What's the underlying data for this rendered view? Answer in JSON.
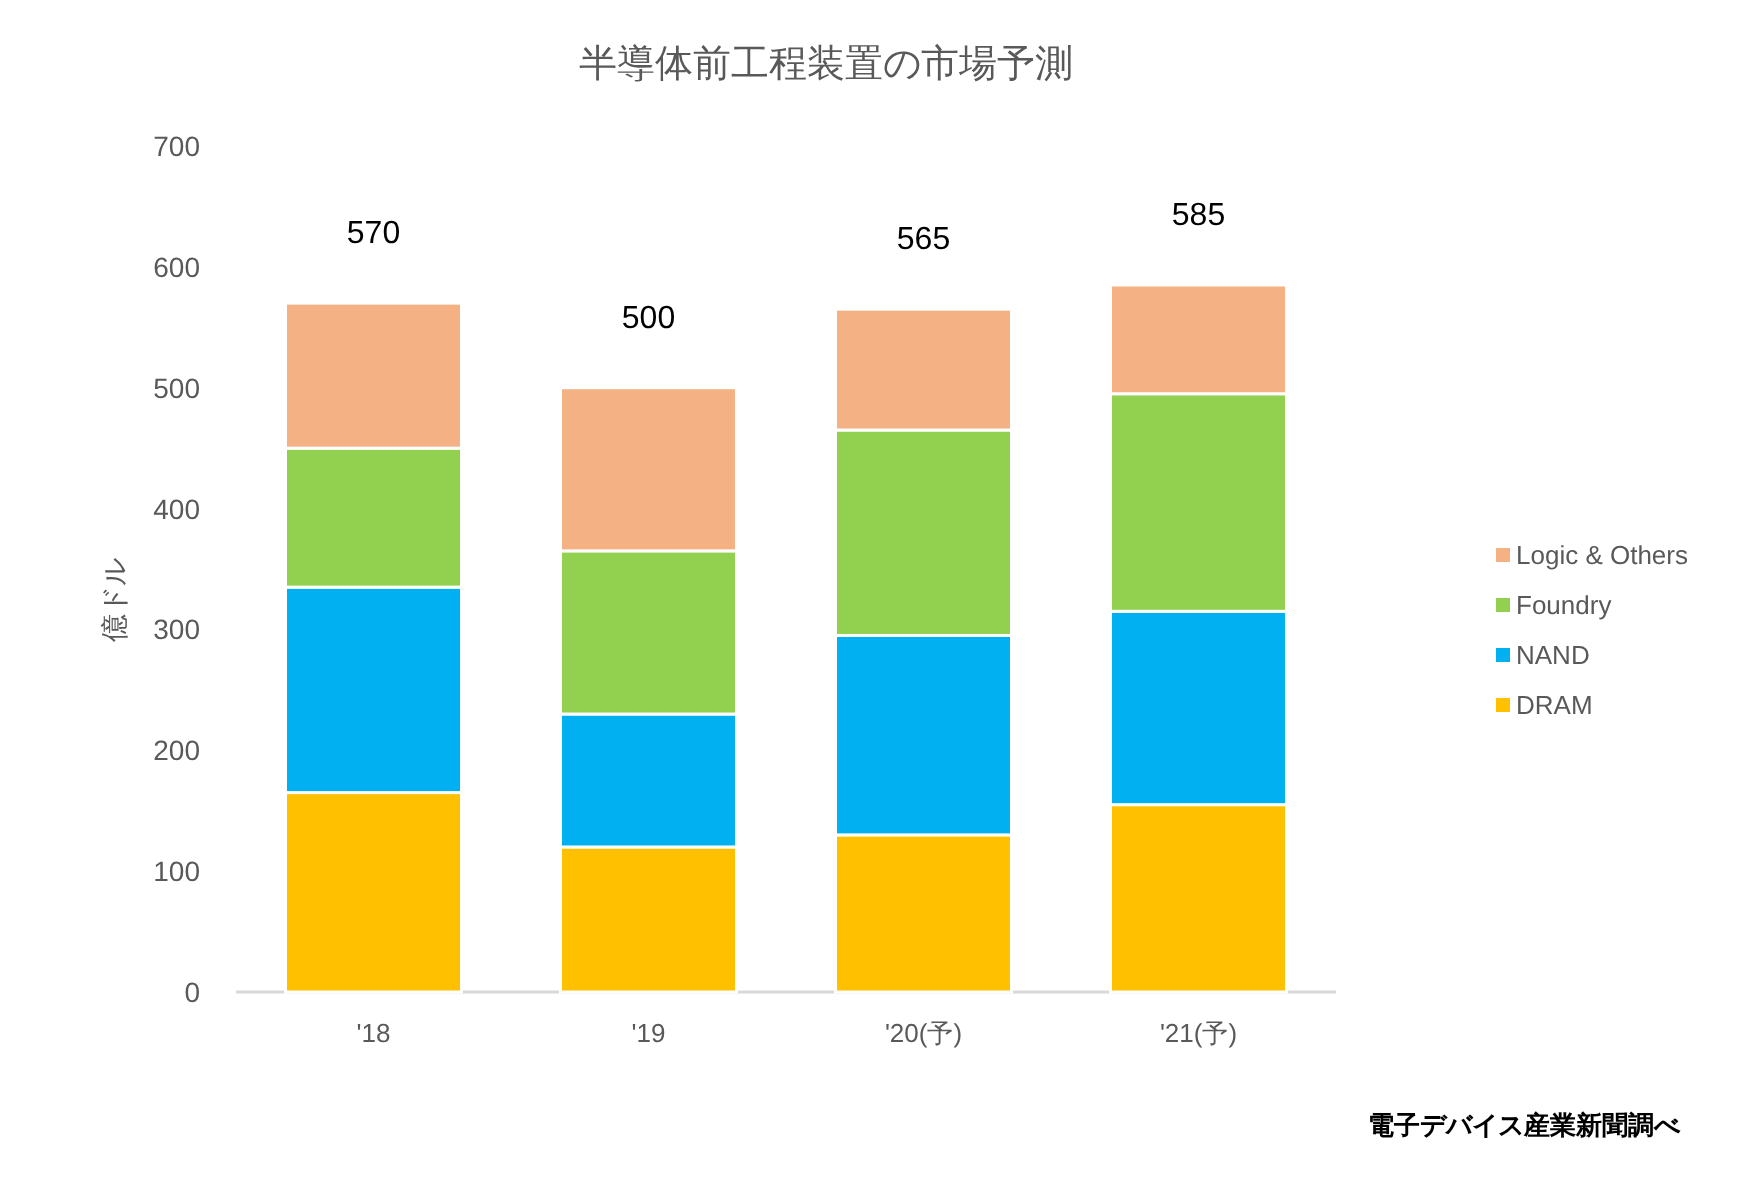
{
  "chart_data": {
    "type": "bar",
    "stacked": true,
    "title": "半導体前工程装置の市場予測",
    "ylabel": "億ドル",
    "categories": [
      "'18",
      "'19",
      "'20(予)",
      "'21(予)"
    ],
    "series": [
      {
        "name": "DRAM",
        "color": "#ffc000",
        "values": [
          165,
          120,
          130,
          155
        ]
      },
      {
        "name": "NAND",
        "color": "#00b0f0",
        "values": [
          170,
          110,
          165,
          160
        ]
      },
      {
        "name": "Foundry",
        "color": "#92d050",
        "values": [
          115,
          135,
          170,
          180
        ]
      },
      {
        "name": "Logic & Others",
        "color": "#f4b183",
        "values": [
          120,
          135,
          100,
          90
        ]
      }
    ],
    "totals": [
      "570",
      "500",
      "565",
      "585"
    ],
    "ylim": [
      0,
      700
    ],
    "yticks": [
      0,
      100,
      200,
      300,
      400,
      500,
      600,
      700
    ],
    "legend": "right",
    "grid": false,
    "annotations": [
      "電子デバイス産業新聞調べ"
    ]
  }
}
